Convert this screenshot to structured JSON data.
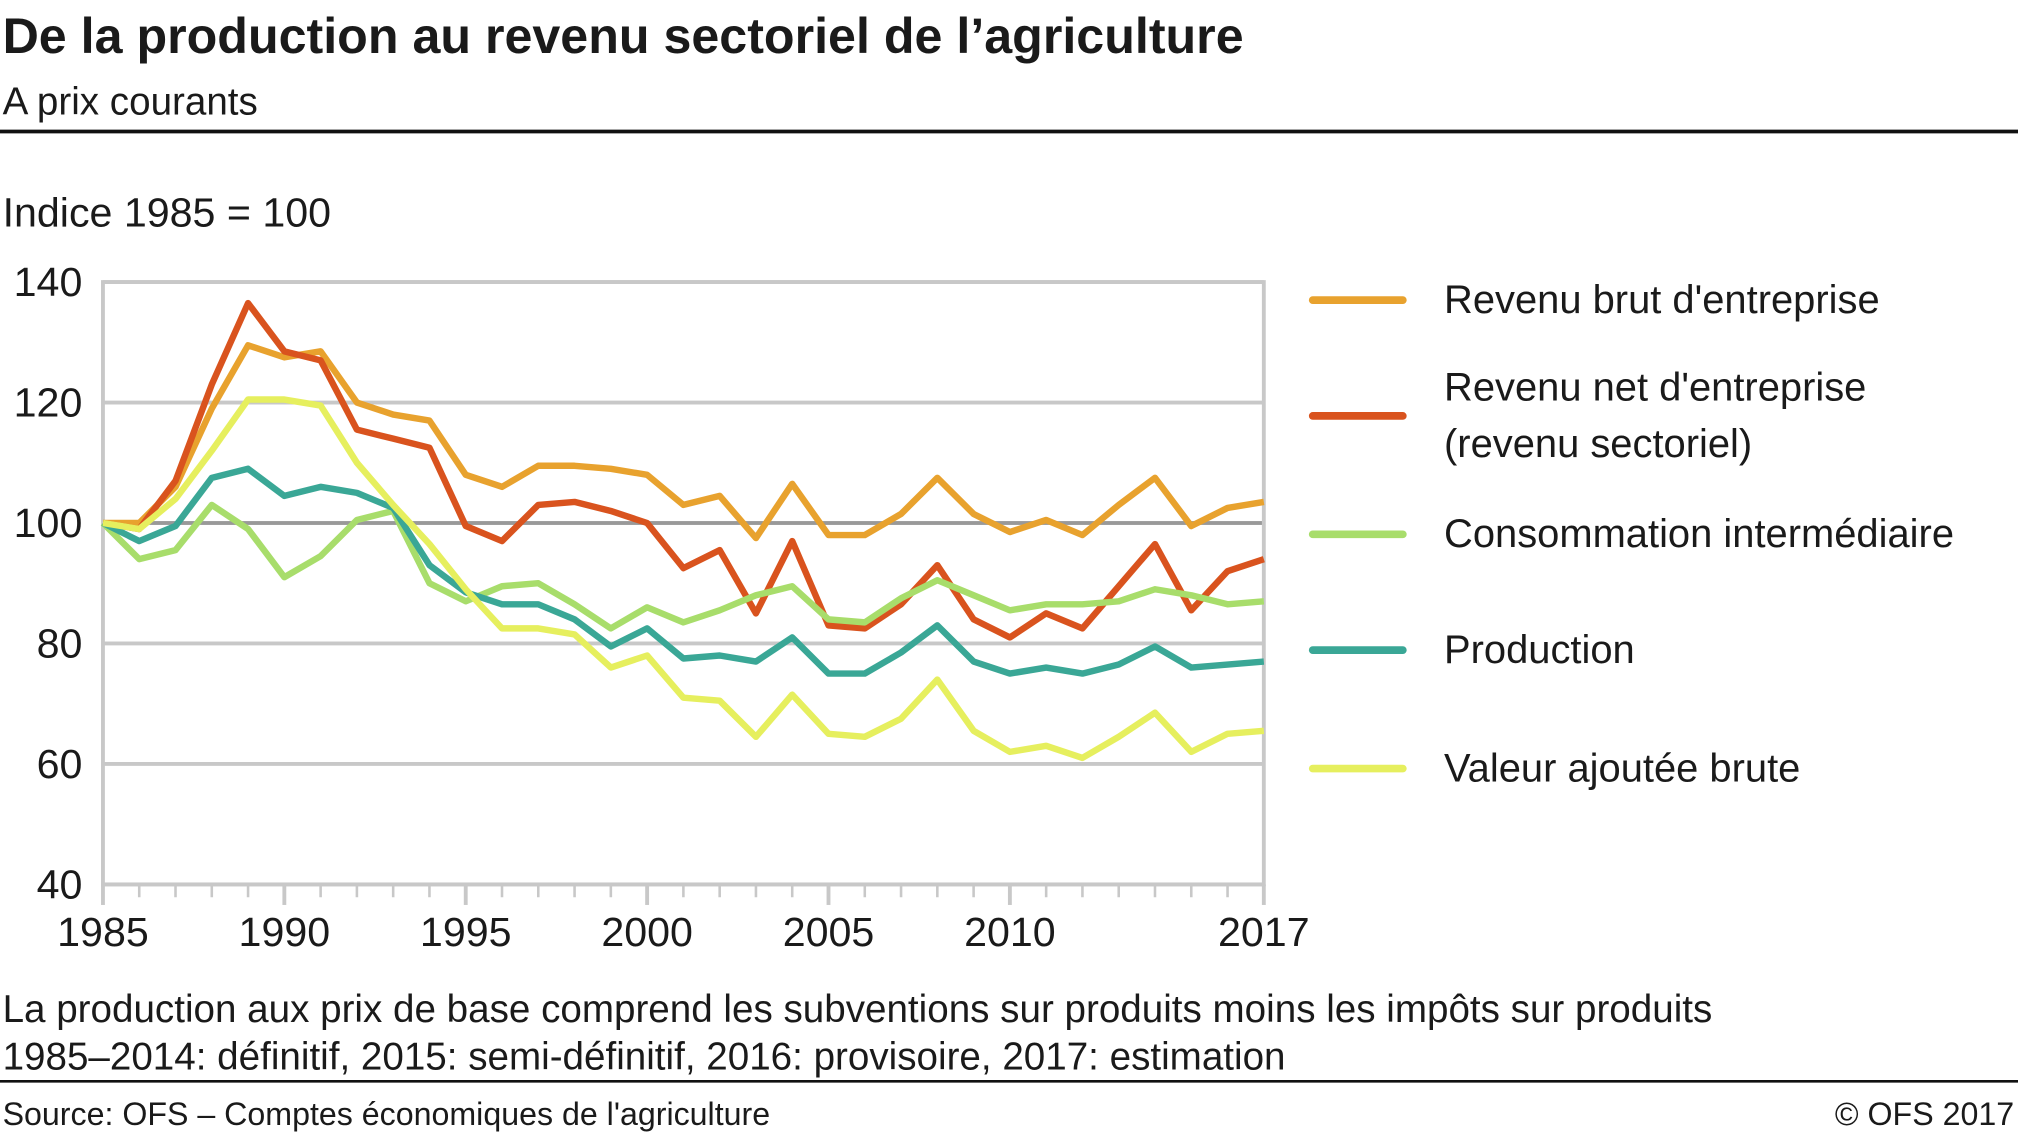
{
  "chart_data": {
    "type": "line",
    "title": "De la production au revenu sectoriel de l’agriculture",
    "subtitle": "A prix courants",
    "y_label": "Indice 1985 = 100",
    "notes": [
      "La production aux prix de base comprend les subventions sur produits moins les impôts sur produits",
      "1985–2014: définitif, 2015: semi-définitif, 2016: provisoire, 2017: estimation"
    ],
    "source": "Source: OFS – Comptes économiques de l'agriculture",
    "copyright": "© OFS  2017",
    "x": [
      1985,
      1986,
      1987,
      1988,
      1989,
      1990,
      1991,
      1992,
      1993,
      1994,
      1995,
      1996,
      1997,
      1998,
      1999,
      2000,
      2001,
      2002,
      2003,
      2004,
      2005,
      2006,
      2007,
      2008,
      2009,
      2010,
      2011,
      2012,
      2013,
      2014,
      2015,
      2016,
      2017
    ],
    "xlim": [
      1985,
      2017
    ],
    "xticks": [
      1985,
      1990,
      1995,
      2000,
      2005,
      2010,
      2017
    ],
    "ylim": [
      40,
      140
    ],
    "yticks": [
      40,
      60,
      80,
      100,
      120,
      140
    ],
    "grid": true,
    "reference_line": 100,
    "series": [
      {
        "name": "Revenu brut d'entreprise",
        "color": "#e8a22e",
        "values": [
          100,
          100,
          106,
          119,
          129.5,
          127.5,
          128.5,
          120,
          118,
          117,
          108,
          106,
          109.5,
          109.5,
          109,
          108,
          103,
          104.5,
          97.5,
          106.5,
          98,
          98,
          101.5,
          107.5,
          101.5,
          98.5,
          100.5,
          98,
          103,
          107.5,
          99.5,
          102.5,
          103.5
        ]
      },
      {
        "name": "Revenu net d'entreprise (revenu sectoriel)",
        "color": "#d9531e",
        "values": [
          100,
          99,
          107,
          123,
          136.5,
          128.5,
          127,
          115.5,
          114,
          112.5,
          99.5,
          97,
          103,
          103.5,
          102,
          100,
          92.5,
          95.5,
          85,
          97,
          83,
          82.5,
          86.5,
          93,
          84,
          81,
          85,
          82.5,
          89.5,
          96.5,
          85.5,
          92,
          94
        ]
      },
      {
        "name": "Consommation intermédiaire",
        "color": "#a8dd6b",
        "values": [
          100,
          94,
          95.5,
          103,
          99,
          91,
          94.5,
          100.5,
          102,
          90,
          87,
          89.5,
          90,
          86.5,
          82.5,
          86,
          83.5,
          85.5,
          88,
          89.5,
          84,
          83.5,
          87.5,
          90.5,
          88,
          85.5,
          86.5,
          86.5,
          87,
          89,
          88,
          86.5,
          87
        ]
      },
      {
        "name": "Production",
        "color": "#3aa796",
        "values": [
          100,
          97,
          99.5,
          107.5,
          109,
          104.5,
          106,
          105,
          102.5,
          93,
          88.5,
          86.5,
          86.5,
          84,
          79.5,
          82.5,
          77.5,
          78,
          77,
          81,
          75,
          75,
          78.5,
          83,
          77,
          75,
          76,
          75,
          76.5,
          79.5,
          76,
          76.5,
          77
        ]
      },
      {
        "name": "Valeur ajoutée brute",
        "color": "#e6ef5e",
        "values": [
          100,
          99,
          104,
          112,
          120.5,
          120.5,
          119.5,
          110,
          103,
          96.5,
          89,
          82.5,
          82.5,
          81.5,
          76,
          78,
          71,
          70.5,
          64.5,
          71.5,
          65,
          64.5,
          67.5,
          74,
          65.5,
          62,
          63,
          61,
          64.5,
          68.5,
          62,
          65,
          65.5
        ]
      }
    ]
  }
}
